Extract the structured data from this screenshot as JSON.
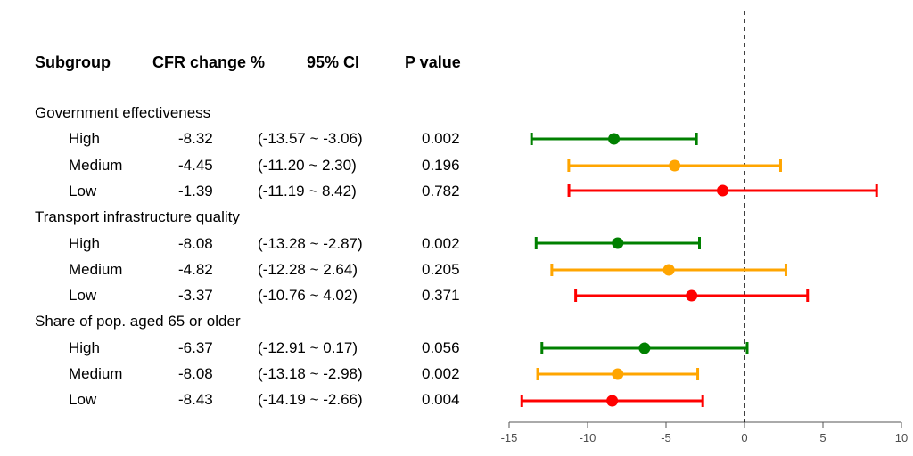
{
  "headers": {
    "subgroup": "Subgroup",
    "cfr_change": "CFR change %",
    "ci": "95% CI",
    "p_value": "P value"
  },
  "groups": [
    {
      "name": "Government effectiveness",
      "rows": [
        {
          "label": "High",
          "est_text": "-8.32",
          "ci_text": "(-13.57 ~ -3.06)",
          "p": "0.002"
        },
        {
          "label": "Medium",
          "est_text": "-4.45",
          "ci_text": "(-11.20 ~ 2.30)",
          "p": "0.196"
        },
        {
          "label": "Low",
          "est_text": "-1.39",
          "ci_text": "(-11.19 ~ 8.42)",
          "p": "0.782"
        }
      ]
    },
    {
      "name": "Transport infrastructure quality",
      "rows": [
        {
          "label": "High",
          "est_text": "-8.08",
          "ci_text": "(-13.28 ~ -2.87)",
          "p": "0.002"
        },
        {
          "label": "Medium",
          "est_text": "-4.82",
          "ci_text": "(-12.28 ~ 2.64)",
          "p": "0.205"
        },
        {
          "label": "Low",
          "est_text": "-3.37",
          "ci_text": "(-10.76 ~ 4.02)",
          "p": "0.371"
        }
      ]
    },
    {
      "name": "Share of pop. aged 65 or older",
      "rows": [
        {
          "label": "High",
          "est_text": "-6.37",
          "ci_text": "(-12.91 ~ 0.17)",
          "p": "0.056"
        },
        {
          "label": "Medium",
          "est_text": "-8.08",
          "ci_text": "(-13.18 ~ -2.98)",
          "p": "0.002"
        },
        {
          "label": "Low",
          "est_text": "-8.43",
          "ci_text": "(-14.19 ~ -2.66)",
          "p": "0.004"
        }
      ]
    }
  ],
  "chart_data": {
    "type": "forest",
    "xlim": [
      -15,
      10
    ],
    "xticks": [
      -15,
      -10,
      -5,
      0,
      5,
      10
    ],
    "xtick_labels": [
      "-15",
      "-10",
      "-5",
      "0",
      "5",
      "10"
    ],
    "reference_line": 0,
    "colors": {
      "High": "#008000",
      "Medium": "#FFA500",
      "Low": "#FF0000"
    },
    "points": [
      {
        "group": "Government effectiveness",
        "subgroup": "High",
        "estimate": -8.32,
        "lower": -13.57,
        "upper": -3.06
      },
      {
        "group": "Government effectiveness",
        "subgroup": "Medium",
        "estimate": -4.45,
        "lower": -11.2,
        "upper": 2.3
      },
      {
        "group": "Government effectiveness",
        "subgroup": "Low",
        "estimate": -1.39,
        "lower": -11.19,
        "upper": 8.42
      },
      {
        "group": "Transport infrastructure quality",
        "subgroup": "High",
        "estimate": -8.08,
        "lower": -13.28,
        "upper": -2.87
      },
      {
        "group": "Transport infrastructure quality",
        "subgroup": "Medium",
        "estimate": -4.82,
        "lower": -12.28,
        "upper": 2.64
      },
      {
        "group": "Transport infrastructure quality",
        "subgroup": "Low",
        "estimate": -3.37,
        "lower": -10.76,
        "upper": 4.02
      },
      {
        "group": "Share of pop. aged 65 or older",
        "subgroup": "High",
        "estimate": -6.37,
        "lower": -12.91,
        "upper": 0.17
      },
      {
        "group": "Share of pop. aged 65 or older",
        "subgroup": "Medium",
        "estimate": -8.08,
        "lower": -13.18,
        "upper": -2.98
      },
      {
        "group": "Share of pop. aged 65 or older",
        "subgroup": "Low",
        "estimate": -8.43,
        "lower": -14.19,
        "upper": -2.66
      }
    ]
  }
}
